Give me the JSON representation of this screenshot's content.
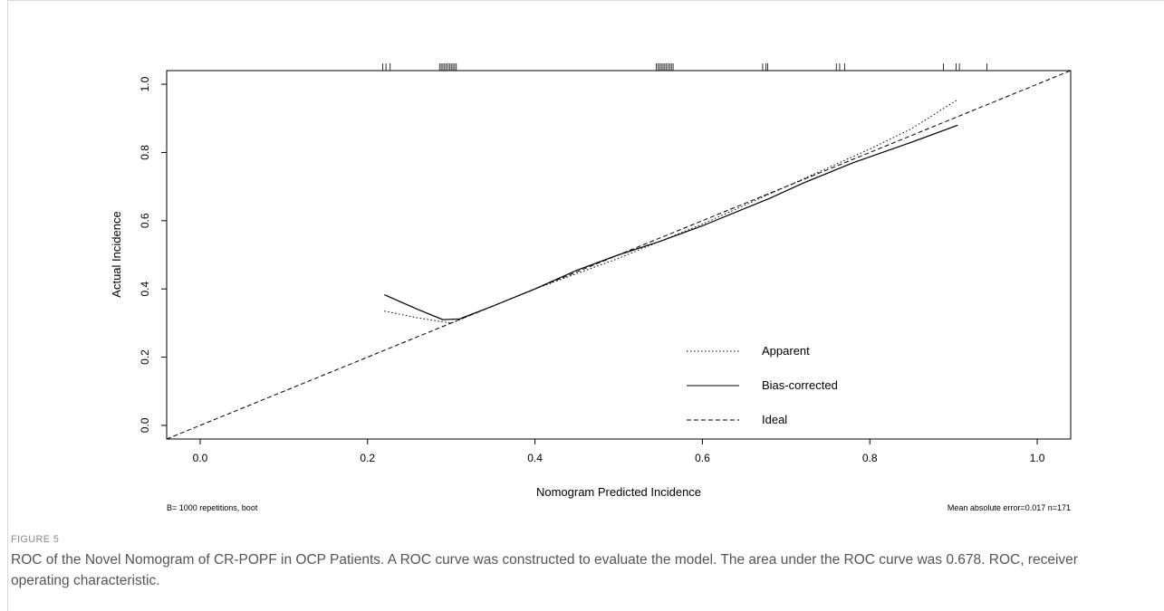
{
  "figure": {
    "label": "FIGURE 5",
    "caption": "ROC of the Novel Nomogram of CR-POPF in OCP Patients. A ROC curve was constructed to evaluate the model. The area under the ROC curve was 0.678. ROC, receiver operating characteristic."
  },
  "chart_data": {
    "type": "line",
    "xlabel": "Nomogram Predicted Incidence",
    "ylabel": "Actual Incidence",
    "xlim": [
      -0.04,
      1.04
    ],
    "ylim": [
      -0.04,
      1.04
    ],
    "xticks": [
      0.0,
      0.2,
      0.4,
      0.6,
      0.8,
      1.0
    ],
    "yticks": [
      0.0,
      0.2,
      0.4,
      0.6,
      0.8,
      1.0
    ],
    "xtick_labels": [
      "0.0",
      "0.2",
      "0.4",
      "0.6",
      "0.8",
      "1.0"
    ],
    "ytick_labels": [
      "0.0",
      "0.2",
      "0.4",
      "0.6",
      "0.8",
      "1.0"
    ],
    "grid": false,
    "legend_position": "bottom-center",
    "series": [
      {
        "name": "Apparent",
        "style": "dotted",
        "x": [
          0.22,
          0.26,
          0.3,
          0.35,
          0.4,
          0.45,
          0.5,
          0.55,
          0.6,
          0.65,
          0.7,
          0.75,
          0.8,
          0.85,
          0.905
        ],
        "y": [
          0.335,
          0.315,
          0.3,
          0.35,
          0.4,
          0.445,
          0.49,
          0.54,
          0.59,
          0.645,
          0.7,
          0.755,
          0.81,
          0.87,
          0.955
        ]
      },
      {
        "name": "Bias-corrected",
        "style": "solid",
        "x": [
          0.22,
          0.26,
          0.29,
          0.31,
          0.35,
          0.4,
          0.45,
          0.5,
          0.55,
          0.6,
          0.65,
          0.68,
          0.72,
          0.78,
          0.85,
          0.905
        ],
        "y": [
          0.383,
          0.34,
          0.31,
          0.312,
          0.35,
          0.4,
          0.455,
          0.5,
          0.54,
          0.585,
          0.635,
          0.665,
          0.71,
          0.77,
          0.83,
          0.88
        ]
      },
      {
        "name": "Ideal",
        "style": "dashed",
        "x": [
          -0.04,
          1.04
        ],
        "y": [
          -0.04,
          1.04
        ]
      }
    ],
    "rug_x": [
      0.218,
      0.222,
      0.227,
      0.286,
      0.288,
      0.29,
      0.292,
      0.294,
      0.296,
      0.298,
      0.3,
      0.302,
      0.304,
      0.306,
      0.545,
      0.547,
      0.549,
      0.551,
      0.553,
      0.555,
      0.557,
      0.559,
      0.561,
      0.563,
      0.565,
      0.672,
      0.676,
      0.678,
      0.76,
      0.764,
      0.77,
      0.888,
      0.903,
      0.907,
      0.94
    ],
    "footnote_left": "B= 1000 repetitions, boot",
    "footnote_right": "Mean absolute error=0.017 n=171"
  }
}
